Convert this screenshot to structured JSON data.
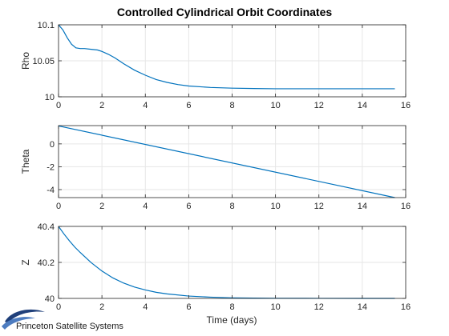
{
  "figure": {
    "title": "Controlled Cylindrical Orbit Coordinates",
    "xlabel": "Time (days)"
  },
  "logo": {
    "text": "Princeton Satellite Systems"
  },
  "colors": {
    "line": "#0072BD",
    "grid": "#e6e6e6",
    "axis": "#262626"
  },
  "chart_data": [
    {
      "type": "line",
      "ylabel": "Rho",
      "xlim": [
        0,
        16
      ],
      "ylim": [
        10,
        10.1
      ],
      "xticks": [
        0,
        2,
        4,
        6,
        8,
        10,
        12,
        14,
        16
      ],
      "yticks": [
        10,
        10.05,
        10.1
      ],
      "ytick_labels": [
        "10",
        "10.05",
        "10.1"
      ],
      "grid": true,
      "x": [
        0,
        0.2,
        0.4,
        0.6,
        0.8,
        1.0,
        1.2,
        1.5,
        1.8,
        2.0,
        2.3,
        2.6,
        3.0,
        3.5,
        4.0,
        4.5,
        5.0,
        5.5,
        6.0,
        7.0,
        8.0,
        9.0,
        10.0,
        12.0,
        14.0,
        15.5
      ],
      "y": [
        10.1,
        10.093,
        10.082,
        10.073,
        10.068,
        10.067,
        10.067,
        10.066,
        10.065,
        10.063,
        10.059,
        10.054,
        10.046,
        10.037,
        10.03,
        10.024,
        10.02,
        10.017,
        10.015,
        10.013,
        10.012,
        10.0115,
        10.0112,
        10.0112,
        10.0112,
        10.0112
      ]
    },
    {
      "type": "line",
      "ylabel": "Theta",
      "xlim": [
        0,
        16
      ],
      "ylim": [
        -4.7,
        1.6
      ],
      "xticks": [
        0,
        2,
        4,
        6,
        8,
        10,
        12,
        14,
        16
      ],
      "yticks": [
        -4,
        -2,
        0
      ],
      "ytick_labels": [
        "-4",
        "-2",
        "0"
      ],
      "grid": true,
      "x": [
        0,
        15.5
      ],
      "y": [
        1.57,
        -4.7
      ]
    },
    {
      "type": "line",
      "ylabel": "Z",
      "xlim": [
        0,
        16
      ],
      "ylim": [
        40,
        40.4
      ],
      "xticks": [
        0,
        2,
        4,
        6,
        8,
        10,
        12,
        14,
        16
      ],
      "yticks": [
        40,
        40.2,
        40.4
      ],
      "ytick_labels": [
        "40",
        "40.2",
        "40.4"
      ],
      "grid": true,
      "x": [
        0,
        0.25,
        0.5,
        0.75,
        1.0,
        1.5,
        2.0,
        2.5,
        3.0,
        3.5,
        4.0,
        4.5,
        5.0,
        6.0,
        7.0,
        8.0,
        9.0,
        10.0,
        12.0,
        14.0,
        15.5
      ],
      "y": [
        40.4,
        40.358,
        40.32,
        40.285,
        40.255,
        40.199,
        40.152,
        40.114,
        40.085,
        40.063,
        40.047,
        40.034,
        40.025,
        40.013,
        40.007,
        40.003,
        40.0017,
        40.0009,
        40.0003,
        40.0001,
        40.0
      ]
    }
  ]
}
